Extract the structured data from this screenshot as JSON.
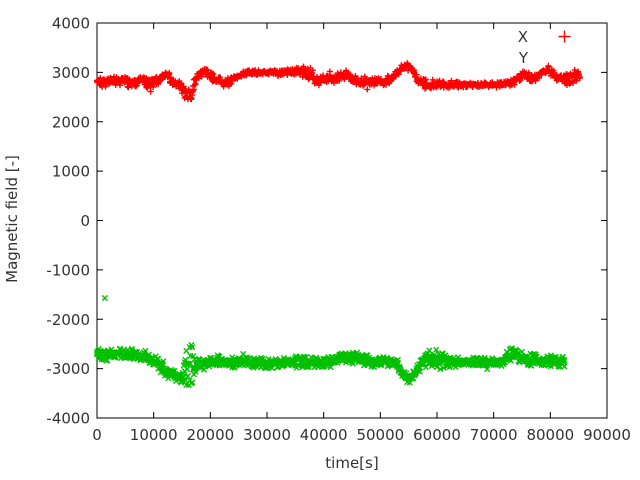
{
  "figure": {
    "background": "#ffffff",
    "frame_color": "#000000",
    "text_color": "#333333"
  },
  "chart_data": {
    "type": "scatter",
    "title": "",
    "xlabel": "time[s]",
    "ylabel": "Magnetic field [-]",
    "xlim": [
      0,
      90000
    ],
    "ylim": [
      -4000,
      4000
    ],
    "xticks": [
      0,
      10000,
      20000,
      30000,
      40000,
      50000,
      60000,
      70000,
      80000,
      90000
    ],
    "yticks": [
      -4000,
      -3000,
      -2000,
      -1000,
      0,
      1000,
      2000,
      3000,
      4000
    ],
    "grid": false,
    "legend_position": "top-right-inside",
    "series": [
      {
        "name": "X",
        "color": "#ff0000",
        "marker": "plus",
        "legend_marker_visible": true,
        "keypoints": [
          [
            0,
            2830,
            130
          ],
          [
            2000,
            2800,
            110
          ],
          [
            4000,
            2850,
            120
          ],
          [
            6000,
            2790,
            110
          ],
          [
            8000,
            2820,
            120
          ],
          [
            9500,
            2780,
            130
          ],
          [
            11000,
            2870,
            120
          ],
          [
            12000,
            2950,
            100
          ],
          [
            12800,
            2880,
            110
          ],
          [
            13800,
            2760,
            120
          ],
          [
            14800,
            2730,
            140
          ],
          [
            15300,
            2610,
            180
          ],
          [
            16000,
            2520,
            190
          ],
          [
            16800,
            2630,
            180
          ],
          [
            17400,
            2820,
            130
          ],
          [
            18300,
            2980,
            100
          ],
          [
            19000,
            3030,
            90
          ],
          [
            19800,
            2940,
            100
          ],
          [
            21000,
            2840,
            100
          ],
          [
            22400,
            2780,
            100
          ],
          [
            23500,
            2820,
            100
          ],
          [
            25000,
            2930,
            80
          ],
          [
            26500,
            2990,
            60
          ],
          [
            28000,
            3000,
            55
          ],
          [
            31000,
            3000,
            55
          ],
          [
            34000,
            3010,
            80
          ],
          [
            35500,
            3040,
            110
          ],
          [
            36500,
            3020,
            140
          ],
          [
            38000,
            2900,
            120
          ],
          [
            39000,
            2820,
            110
          ],
          [
            40500,
            2880,
            120
          ],
          [
            42000,
            2860,
            110
          ],
          [
            43000,
            2910,
            110
          ],
          [
            44300,
            2960,
            100
          ],
          [
            45500,
            2840,
            110
          ],
          [
            47000,
            2810,
            110
          ],
          [
            49000,
            2820,
            110
          ],
          [
            51000,
            2830,
            110
          ],
          [
            52500,
            2910,
            100
          ],
          [
            53800,
            3090,
            80
          ],
          [
            54500,
            3140,
            75
          ],
          [
            55500,
            3060,
            90
          ],
          [
            56500,
            2880,
            110
          ],
          [
            57500,
            2790,
            120
          ],
          [
            58500,
            2750,
            120
          ],
          [
            60000,
            2760,
            100
          ],
          [
            62000,
            2750,
            75
          ],
          [
            65000,
            2750,
            65
          ],
          [
            68000,
            2750,
            65
          ],
          [
            71000,
            2750,
            65
          ],
          [
            73000,
            2770,
            80
          ],
          [
            74500,
            2910,
            100
          ],
          [
            75500,
            2960,
            100
          ],
          [
            76400,
            2890,
            100
          ],
          [
            77500,
            2870,
            110
          ],
          [
            78500,
            3000,
            110
          ],
          [
            79500,
            3050,
            110
          ],
          [
            80500,
            2950,
            110
          ],
          [
            81500,
            2880,
            120
          ],
          [
            82500,
            2880,
            130
          ],
          [
            83500,
            2890,
            140
          ],
          [
            84500,
            2930,
            140
          ],
          [
            85200,
            2950,
            130
          ]
        ],
        "extra_points": [
          [
            84300,
            3050
          ]
        ]
      },
      {
        "name": "Y",
        "color": "#00c000",
        "marker": "cross",
        "legend_marker_visible": false,
        "keypoints": [
          [
            0,
            -2720,
            140
          ],
          [
            2000,
            -2730,
            130
          ],
          [
            4000,
            -2700,
            140
          ],
          [
            6000,
            -2730,
            130
          ],
          [
            8000,
            -2740,
            140
          ],
          [
            9500,
            -2790,
            140
          ],
          [
            11000,
            -2910,
            150
          ],
          [
            12500,
            -3060,
            150
          ],
          [
            13800,
            -3150,
            140
          ],
          [
            15000,
            -3200,
            150
          ],
          [
            15600,
            -2950,
            430
          ],
          [
            16300,
            -2900,
            440
          ],
          [
            17000,
            -2950,
            400
          ],
          [
            17600,
            -2940,
            160
          ],
          [
            18500,
            -2920,
            130
          ],
          [
            20000,
            -2880,
            120
          ],
          [
            22000,
            -2860,
            120
          ],
          [
            25000,
            -2870,
            120
          ],
          [
            28000,
            -2870,
            120
          ],
          [
            31000,
            -2880,
            130
          ],
          [
            34000,
            -2870,
            130
          ],
          [
            36000,
            -2890,
            150
          ],
          [
            38000,
            -2870,
            130
          ],
          [
            40000,
            -2880,
            130
          ],
          [
            42000,
            -2830,
            140
          ],
          [
            43500,
            -2790,
            150
          ],
          [
            45000,
            -2780,
            150
          ],
          [
            47000,
            -2800,
            140
          ],
          [
            48500,
            -2860,
            130
          ],
          [
            50000,
            -2870,
            120
          ],
          [
            52000,
            -2880,
            120
          ],
          [
            53200,
            -2960,
            130
          ],
          [
            54200,
            -3130,
            120
          ],
          [
            54900,
            -3200,
            120
          ],
          [
            55800,
            -3150,
            120
          ],
          [
            56700,
            -2990,
            130
          ],
          [
            57500,
            -2850,
            170
          ],
          [
            58500,
            -2790,
            220
          ],
          [
            59500,
            -2820,
            240
          ],
          [
            60500,
            -2810,
            220
          ],
          [
            61500,
            -2830,
            190
          ],
          [
            62500,
            -2860,
            130
          ],
          [
            64000,
            -2870,
            100
          ],
          [
            66000,
            -2870,
            100
          ],
          [
            68000,
            -2870,
            100
          ],
          [
            70000,
            -2870,
            100
          ],
          [
            71500,
            -2860,
            110
          ],
          [
            72500,
            -2760,
            150
          ],
          [
            73200,
            -2680,
            160
          ],
          [
            74000,
            -2740,
            150
          ],
          [
            75000,
            -2800,
            140
          ],
          [
            76500,
            -2820,
            140
          ],
          [
            78000,
            -2840,
            130
          ],
          [
            79500,
            -2860,
            120
          ],
          [
            81000,
            -2860,
            120
          ],
          [
            82600,
            -2850,
            120
          ]
        ],
        "extra_points": [
          [
            1400,
            -1570
          ]
        ]
      }
    ]
  }
}
